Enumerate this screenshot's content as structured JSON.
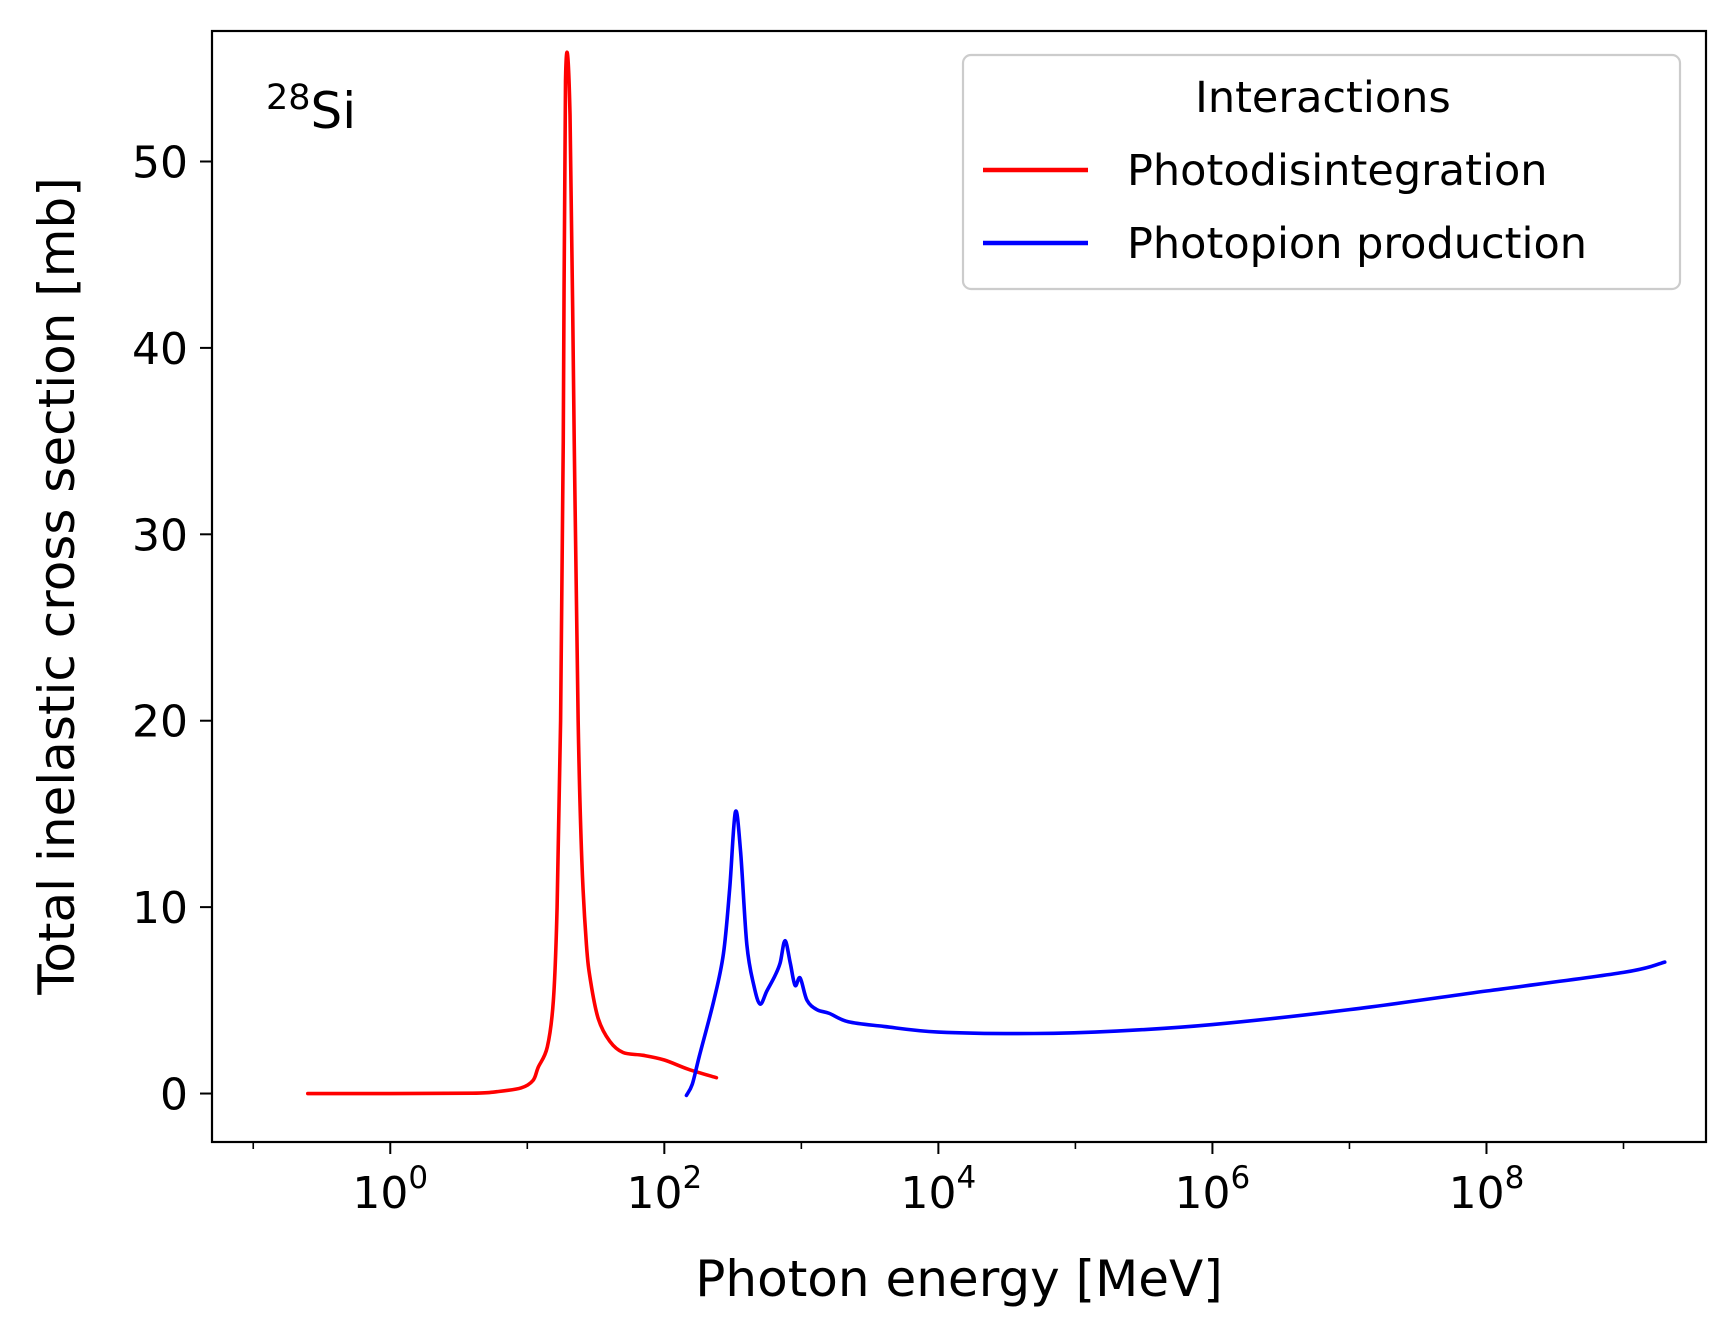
{
  "chart_data": {
    "type": "line",
    "xlabel": "Photon energy [MeV]",
    "ylabel": "Total inelastic cross section [mb]",
    "annotation": {
      "mass_number": "28",
      "element": "Si"
    },
    "x_scale": "log",
    "xlim": [
      0.05,
      4000000000.0
    ],
    "ylim": [
      -2.6,
      57
    ],
    "grid": false,
    "x_ticks": [
      {
        "value": 1,
        "base": "10",
        "exponent": "0"
      },
      {
        "value": 100,
        "base": "10",
        "exponent": "2"
      },
      {
        "value": 10000,
        "base": "10",
        "exponent": "4"
      },
      {
        "value": 1000000,
        "base": "10",
        "exponent": "6"
      },
      {
        "value": 100000000,
        "base": "10",
        "exponent": "8"
      }
    ],
    "y_ticks": [
      {
        "value": 0,
        "label": "0"
      },
      {
        "value": 10,
        "label": "10"
      },
      {
        "value": 20,
        "label": "20"
      },
      {
        "value": 30,
        "label": "30"
      },
      {
        "value": 40,
        "label": "40"
      },
      {
        "value": 50,
        "label": "50"
      }
    ],
    "legend": {
      "title": "Interactions",
      "position": "top-right"
    },
    "series": [
      {
        "name": "Photodisintegration",
        "color": "#ff0000",
        "points": [
          [
            0.25,
            0
          ],
          [
            1,
            0
          ],
          [
            4,
            0.02
          ],
          [
            6,
            0.1
          ],
          [
            9,
            0.3
          ],
          [
            11,
            0.7
          ],
          [
            12,
            1.4
          ],
          [
            14,
            2.5
          ],
          [
            15.5,
            5
          ],
          [
            16.5,
            10
          ],
          [
            17.5,
            20
          ],
          [
            18.3,
            35
          ],
          [
            19,
            54.3
          ],
          [
            20.5,
            52.5
          ],
          [
            22,
            35
          ],
          [
            23.5,
            20
          ],
          [
            25,
            12.5
          ],
          [
            27,
            8
          ],
          [
            29,
            6
          ],
          [
            33,
            4
          ],
          [
            40,
            2.8
          ],
          [
            50,
            2.2
          ],
          [
            70,
            2.05
          ],
          [
            100,
            1.8
          ],
          [
            150,
            1.3
          ],
          [
            240,
            0.85
          ]
        ]
      },
      {
        "name": "Photopion production",
        "color": "#0000ff",
        "points": [
          [
            145,
            -0.1
          ],
          [
            160,
            0.5
          ],
          [
            180,
            2
          ],
          [
            230,
            5
          ],
          [
            270,
            7.5
          ],
          [
            300,
            11
          ],
          [
            330,
            15.1
          ],
          [
            360,
            13
          ],
          [
            400,
            8
          ],
          [
            450,
            5.8
          ],
          [
            500,
            4.8
          ],
          [
            560,
            5.5
          ],
          [
            640,
            6.3
          ],
          [
            700,
            7
          ],
          [
            760,
            8.2
          ],
          [
            830,
            7
          ],
          [
            900,
            5.8
          ],
          [
            980,
            6.2
          ],
          [
            1100,
            5
          ],
          [
            1300,
            4.5
          ],
          [
            1600,
            4.3
          ],
          [
            2200,
            3.85
          ],
          [
            4000,
            3.6
          ],
          [
            10000,
            3.3
          ],
          [
            50000,
            3.22
          ],
          [
            200000,
            3.35
          ],
          [
            1000000,
            3.7
          ],
          [
            10000000,
            4.5
          ],
          [
            100000000,
            5.5
          ],
          [
            1000000000,
            6.5
          ],
          [
            2000000000,
            7.05
          ]
        ]
      }
    ]
  }
}
